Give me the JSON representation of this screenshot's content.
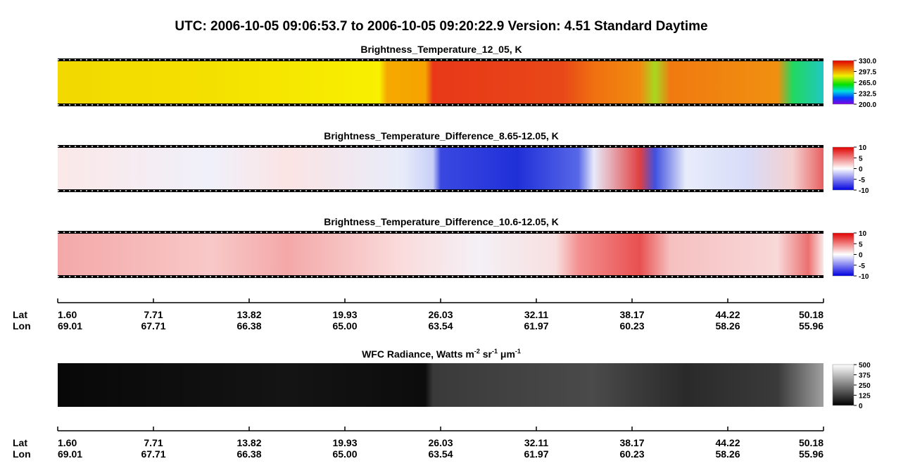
{
  "title": "UTC:  2006-10-05   09:06:53.7  to  2006-10-05   09:20:22.9    Version: 4.51  Standard Daytime",
  "panels": [
    {
      "title": "Brightness_Temperature_12_05, K",
      "colorbar": {
        "lim": [
          200,
          330
        ],
        "ticks": [
          {
            "value": 330,
            "label": "330.0"
          },
          {
            "value": 297.5,
            "label": "297.5"
          },
          {
            "value": 265,
            "label": "265.0"
          },
          {
            "value": 232.5,
            "label": "232.5"
          },
          {
            "value": 200,
            "label": "200.0"
          }
        ]
      }
    },
    {
      "title": "Brightness_Temperature_Difference_8.65-12.05, K",
      "colorbar": {
        "lim": [
          -10,
          10
        ],
        "ticks": [
          10,
          5,
          0,
          -5,
          -10
        ]
      }
    },
    {
      "title": "Brightness_Temperature_Difference_10.6-12.05, K",
      "colorbar": {
        "lim": [
          -10,
          10
        ],
        "ticks": [
          10,
          5,
          0,
          -5,
          -10
        ]
      }
    },
    {
      "title": [
        "WFC Radiance, Watts m",
        "-2",
        " sr",
        "-1",
        " μm",
        "-1"
      ],
      "colorbar": {
        "lim": [
          0,
          500
        ],
        "ticks": [
          500,
          375,
          250,
          125,
          0
        ]
      }
    }
  ],
  "axes": [
    {
      "lat_label": "Lat",
      "lon_label": "Lon",
      "lat": [
        "1.60",
        "7.71",
        "13.82",
        "19.93",
        "26.03",
        "32.11",
        "38.17",
        "44.22",
        "50.18"
      ],
      "lon": [
        "69.01",
        "67.71",
        "66.38",
        "65.00",
        "63.54",
        "61.97",
        "60.23",
        "58.26",
        "55.96"
      ]
    },
    {
      "lat_label": "Lat",
      "lon_label": "Lon",
      "lat": [
        "1.60",
        "7.71",
        "13.82",
        "19.93",
        "26.03",
        "32.11",
        "38.17",
        "44.22",
        "50.18"
      ],
      "lon": [
        "69.01",
        "67.71",
        "66.38",
        "65.00",
        "63.54",
        "61.97",
        "60.23",
        "58.26",
        "55.96"
      ]
    }
  ]
}
